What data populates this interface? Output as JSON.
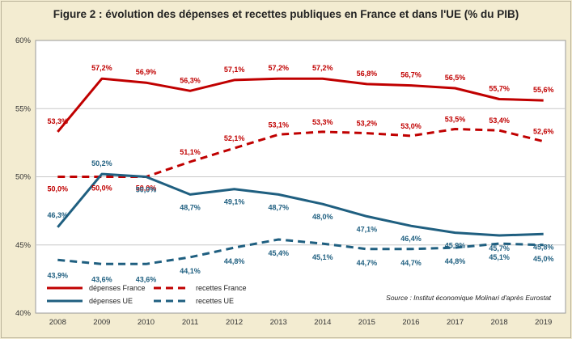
{
  "chart_data": {
    "type": "line",
    "title": "Figure 2 : évolution des dépenses et recettes publiques en France et dans l'UE (% du PIB)",
    "x": [
      "2008",
      "2009",
      "2010",
      "2011",
      "2012",
      "2013",
      "2014",
      "2015",
      "2016",
      "2017",
      "2018",
      "2019"
    ],
    "ylim": [
      40,
      60
    ],
    "yticks": [
      40,
      45,
      50,
      55,
      60
    ],
    "ytick_labels": [
      "40%",
      "45%",
      "50%",
      "55%",
      "60%"
    ],
    "grid": true,
    "legend_position": "bottom-left",
    "source": "Source : Institut économique Molinari d'après Eurostat",
    "series": [
      {
        "name": "dépenses France",
        "color": "#c00000",
        "dash": "solid",
        "values": [
          53.3,
          57.2,
          56.9,
          56.3,
          57.1,
          57.2,
          57.2,
          56.8,
          56.7,
          56.5,
          55.7,
          55.6
        ],
        "labels": [
          "53,3%",
          "57,2%",
          "56,9%",
          "56,3%",
          "57,1%",
          "57,2%",
          "57,2%",
          "56,8%",
          "56,7%",
          "56,5%",
          "55,7%",
          "55,6%"
        ]
      },
      {
        "name": "recettes France",
        "color": "#c00000",
        "dash": "dashed",
        "values": [
          50.0,
          50.0,
          50.0,
          51.1,
          52.1,
          53.1,
          53.3,
          53.2,
          53.0,
          53.5,
          53.4,
          52.6
        ],
        "labels": [
          "50,0%",
          "50,0%",
          "50,0%",
          "51,1%",
          "52,1%",
          "53,1%",
          "53,3%",
          "53,2%",
          "53,0%",
          "53,5%",
          "53,4%",
          "52,6%"
        ]
      },
      {
        "name": "dépenses UE",
        "color": "#1f5f80",
        "dash": "solid",
        "values": [
          46.3,
          50.2,
          50.0,
          48.7,
          49.1,
          48.7,
          48.0,
          47.1,
          46.4,
          45.9,
          45.7,
          45.8
        ],
        "labels": [
          "46,3%",
          "50,2%",
          "50,0%",
          "48,7%",
          "49,1%",
          "48,7%",
          "48,0%",
          "47,1%",
          "46,4%",
          "45,9%",
          "45,7%",
          "45,8%"
        ]
      },
      {
        "name": "recettes UE",
        "color": "#1f5f80",
        "dash": "dashed",
        "values": [
          43.9,
          43.6,
          43.6,
          44.1,
          44.8,
          45.4,
          45.1,
          44.7,
          44.7,
          44.8,
          45.1,
          45.0
        ],
        "labels": [
          "43,9%",
          "43,6%",
          "43,6%",
          "44,1%",
          "44,8%",
          "45,4%",
          "45,1%",
          "44,7%",
          "44,7%",
          "44,8%",
          "45,1%",
          "45,0%"
        ]
      }
    ]
  }
}
